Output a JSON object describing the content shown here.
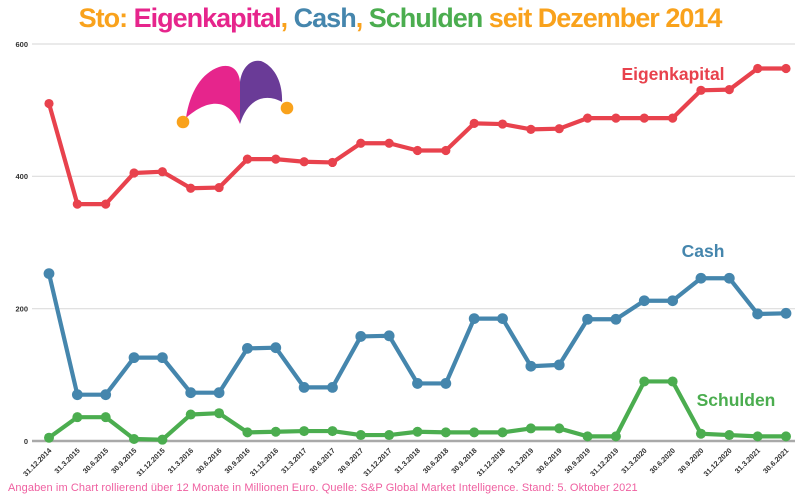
{
  "title": {
    "parts": [
      {
        "text": "Sto: ",
        "color_key": "orange"
      },
      {
        "text": "Eigenkapital",
        "color_key": "pink"
      },
      {
        "text": ", ",
        "color_key": "orange"
      },
      {
        "text": "Cash",
        "color_key": "blue"
      },
      {
        "text": ", ",
        "color_key": "orange"
      },
      {
        "text": "Schulden",
        "color_key": "green"
      },
      {
        "text": " seit Dezember 2014",
        "color_key": "orange"
      }
    ]
  },
  "footer": {
    "text": "Angaben im Chart rollierend über 12 Monate in Millionen Euro. Quelle:  S&P Global Market Intelligence. Stand: 5. Oktober 2021"
  },
  "logo": {
    "name": "jester-hat-logo"
  },
  "colors": {
    "orange": "#F9A21C",
    "pink": "#E6258C",
    "blue": "#4586AD",
    "green": "#4BAD4F",
    "red_line": "#E8424D",
    "purple": "#6A3B97",
    "footer_pink": "#EF5FA0",
    "grid": "#DDDDDD",
    "axis": "#A9A9A9",
    "tick_text": "#333333"
  },
  "chart_data": {
    "type": "line",
    "title": "Sto: Eigenkapital, Cash, Schulden seit Dezember 2014",
    "xlabel": "",
    "ylabel": "",
    "unit_note": "rollierend über 12 Monate, in Millionen Euro",
    "ylim": [
      0,
      600
    ],
    "yticks": [
      0,
      200,
      400,
      600
    ],
    "grid": true,
    "legend_position": "inline-labels",
    "categories": [
      "31.12.2014",
      "31.3.2015",
      "30.6.2015",
      "30.9.2015",
      "31.12.2015",
      "31.3.2016",
      "30.6.2016",
      "30.9.2016",
      "31.12.2016",
      "31.3.2017",
      "30.6.2017",
      "30.9.2017",
      "31.12.2017",
      "31.3.2018",
      "30.6.2018",
      "30.9.2018",
      "31.12.2018",
      "31.3.2019",
      "30.6.2019",
      "30.9.2019",
      "31.12.2019",
      "31.3.2020",
      "30.6.2020",
      "30.9.2020",
      "31.12.2020",
      "31.3.2021",
      "30.6.2021"
    ],
    "series": [
      {
        "name": "Eigenkapital",
        "color_key": "red_line",
        "values": [
          510,
          358,
          358,
          405,
          407,
          382,
          383,
          426,
          426,
          422,
          421,
          450,
          450,
          439,
          439,
          480,
          479,
          471,
          472,
          488,
          488,
          488,
          488,
          530,
          531,
          563,
          563
        ]
      },
      {
        "name": "Cash",
        "color_key": "blue",
        "values": [
          253,
          70,
          70,
          126,
          126,
          73,
          73,
          140,
          141,
          81,
          81,
          158,
          159,
          87,
          87,
          185,
          185,
          113,
          115,
          184,
          184,
          212,
          212,
          246,
          246,
          192,
          193
        ]
      },
      {
        "name": "Schulden",
        "color_key": "green",
        "values": [
          5,
          36,
          36,
          3,
          2,
          40,
          42,
          13,
          14,
          15,
          15,
          9,
          9,
          14,
          13,
          13,
          13,
          19,
          19,
          7,
          7,
          90,
          90,
          11,
          9,
          7,
          7
        ]
      }
    ]
  }
}
